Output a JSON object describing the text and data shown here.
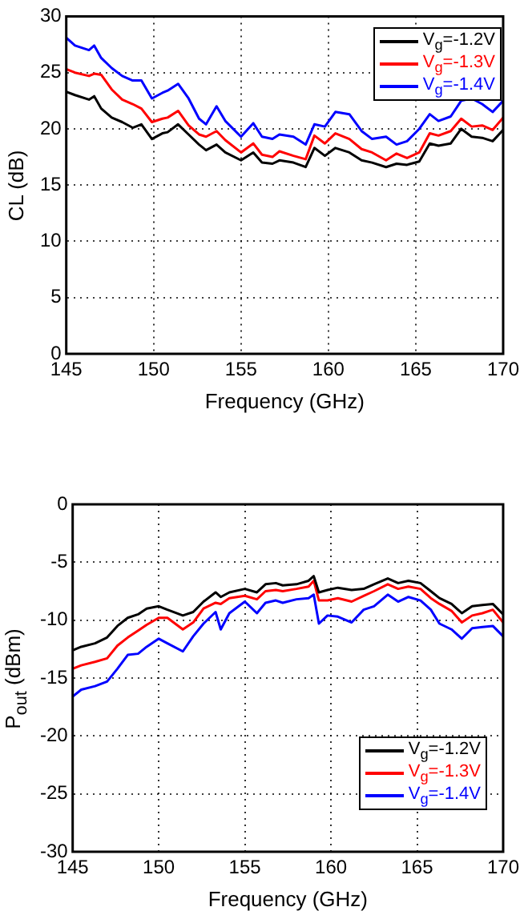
{
  "chart_data": [
    {
      "type": "line",
      "xlabel": "Frequency (GHz)",
      "ylabel": "CL (dB)",
      "xlim": [
        145,
        170
      ],
      "xticks": [
        145,
        150,
        155,
        160,
        165,
        170
      ],
      "ylim": [
        0,
        30
      ],
      "yticks": [
        0,
        5,
        10,
        15,
        20,
        25,
        30
      ],
      "grid": true,
      "legend": "top right",
      "line_style": "solid",
      "x": [
        145,
        145.5,
        146.3,
        146.6,
        147,
        147.6,
        148.2,
        148.8,
        149.3,
        149.9,
        150.5,
        150.8,
        151.4,
        152,
        152.6,
        153,
        153.6,
        154.1,
        155,
        155.7,
        156.2,
        156.8,
        157.2,
        158,
        158.7,
        159.2,
        159.8,
        160.4,
        161.2,
        161.9,
        162.5,
        163.3,
        163.9,
        164.5,
        165.2,
        165.8,
        166.3,
        167,
        167.6,
        168.2,
        168.8,
        169.4,
        170
      ],
      "series": [
        {
          "name": "V$_{g}$=-1.2V",
          "color": "#000000",
          "values": [
            23.3,
            23.0,
            22.6,
            22.9,
            21.8,
            21.0,
            20.6,
            20.1,
            20.4,
            19.1,
            19.6,
            19.7,
            20.4,
            19.5,
            18.6,
            18.1,
            18.6,
            17.9,
            17.2,
            17.9,
            17.0,
            16.9,
            17.2,
            17.0,
            16.6,
            18.3,
            17.6,
            18.3,
            17.9,
            17.2,
            17.0,
            16.6,
            16.9,
            16.8,
            17.1,
            18.7,
            18.5,
            18.7,
            20.0,
            19.3,
            19.2,
            18.9,
            19.9
          ]
        },
        {
          "name": "V$_{g}$=-1.3V",
          "color": "#ff0000",
          "values": [
            25.3,
            25.0,
            24.7,
            24.9,
            24.8,
            23.5,
            22.6,
            22.2,
            21.8,
            20.6,
            20.9,
            21.0,
            21.6,
            20.3,
            19.5,
            19.3,
            19.8,
            19.0,
            17.9,
            18.7,
            17.7,
            17.5,
            18.0,
            17.6,
            17.3,
            19.4,
            18.7,
            19.6,
            19.1,
            18.2,
            17.9,
            17.2,
            17.8,
            17.4,
            17.9,
            19.6,
            19.4,
            19.8,
            20.9,
            20.2,
            20.3,
            19.9,
            21.0
          ]
        },
        {
          "name": "V$_{g}$=-1.4V",
          "color": "#0000ff",
          "values": [
            28.1,
            27.4,
            27.0,
            27.4,
            26.3,
            25.4,
            24.7,
            24.3,
            24.3,
            22.7,
            23.2,
            23.4,
            24.0,
            22.7,
            20.9,
            20.4,
            22.0,
            20.7,
            19.3,
            20.5,
            19.3,
            19.1,
            19.5,
            19.3,
            18.6,
            20.4,
            20.2,
            21.5,
            21.3,
            19.8,
            19.1,
            19.3,
            18.6,
            18.9,
            20.0,
            21.3,
            20.7,
            21.1,
            22.5,
            22.7,
            22.2,
            21.5,
            22.5
          ]
        }
      ]
    },
    {
      "type": "line",
      "xlabel": "Frequency (GHz)",
      "ylabel": "P$_{out}$ (dBm)",
      "xlim": [
        145,
        170
      ],
      "xticks": [
        145,
        150,
        155,
        160,
        165,
        170
      ],
      "ylim": [
        -30,
        0
      ],
      "yticks": [
        -30,
        -25,
        -20,
        -15,
        -10,
        -5,
        0
      ],
      "grid": true,
      "legend": "bottom right",
      "line_style": "solid",
      "x": [
        145,
        145.5,
        146.3,
        147,
        147.6,
        148.2,
        148.8,
        149.3,
        150,
        150.5,
        151.4,
        152,
        152.6,
        153.3,
        153.6,
        154.1,
        155,
        155.7,
        156.2,
        156.8,
        157.2,
        158,
        158.7,
        159,
        159.3,
        159.8,
        160.4,
        161.2,
        161.9,
        162.5,
        163.3,
        163.9,
        164.5,
        165.2,
        165.8,
        166.3,
        167,
        167.6,
        168.2,
        168.8,
        169.4,
        170
      ],
      "series": [
        {
          "name": "V$_{g}$=-1.2V",
          "color": "#000000",
          "values": [
            -12.6,
            -12.3,
            -12.0,
            -11.5,
            -10.5,
            -9.8,
            -9.5,
            -9.0,
            -8.8,
            -9.1,
            -9.6,
            -9.3,
            -8.4,
            -7.6,
            -8.0,
            -7.6,
            -7.3,
            -7.6,
            -6.9,
            -6.8,
            -7.0,
            -6.9,
            -6.6,
            -6.2,
            -7.6,
            -7.4,
            -7.2,
            -7.4,
            -7.3,
            -6.9,
            -6.4,
            -6.8,
            -6.6,
            -6.8,
            -7.5,
            -8.1,
            -8.6,
            -9.4,
            -8.8,
            -8.7,
            -8.6,
            -9.5
          ]
        },
        {
          "name": "V$_{g}$=-1.3V",
          "color": "#ff0000",
          "values": [
            -14.2,
            -13.9,
            -13.6,
            -13.3,
            -12.2,
            -11.5,
            -10.9,
            -10.4,
            -9.8,
            -9.8,
            -10.8,
            -10.2,
            -9.0,
            -8.5,
            -8.6,
            -8.1,
            -7.9,
            -8.2,
            -7.5,
            -7.4,
            -7.5,
            -7.3,
            -7.1,
            -6.6,
            -8.3,
            -8.3,
            -8.1,
            -8.4,
            -7.9,
            -7.5,
            -6.9,
            -7.3,
            -7.1,
            -7.3,
            -8.1,
            -8.6,
            -9.2,
            -10.2,
            -9.6,
            -9.4,
            -9.1,
            -10.2
          ]
        },
        {
          "name": "V$_{g}$=-1.4V",
          "color": "#0000ff",
          "values": [
            -16.6,
            -16.0,
            -15.7,
            -15.3,
            -14.2,
            -13.0,
            -12.9,
            -12.3,
            -11.6,
            -12.0,
            -12.7,
            -11.4,
            -10.3,
            -9.3,
            -10.8,
            -9.4,
            -8.4,
            -9.4,
            -8.5,
            -8.3,
            -8.5,
            -8.2,
            -8.1,
            -7.8,
            -10.3,
            -9.6,
            -9.7,
            -10.2,
            -9.1,
            -8.8,
            -7.8,
            -8.4,
            -8.0,
            -8.3,
            -9.1,
            -10.3,
            -10.8,
            -11.6,
            -10.7,
            -10.6,
            -10.5,
            -11.4
          ]
        }
      ]
    }
  ]
}
